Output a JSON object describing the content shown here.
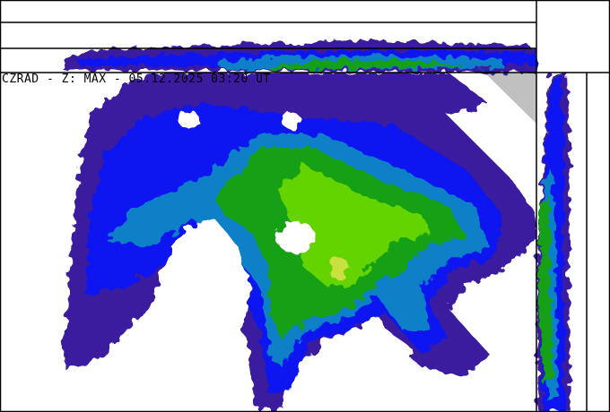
{
  "title": "CZRAD - Z: MAX - 05.12.2025 03:20 UT",
  "product": "MAX",
  "colors": {
    "level1": "#3a1a9e",
    "level2": "#0a14f0",
    "level3": "#0a80c8",
    "level4": "#12a012",
    "level5": "#64d400",
    "level6": "#c8e040",
    "no_coverage": "#c0c0c0",
    "frame": "#000000"
  }
}
